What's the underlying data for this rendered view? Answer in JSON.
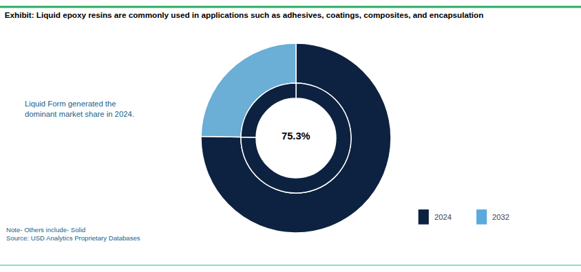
{
  "chart_data": {
    "type": "donut",
    "title": "Exhibit: Liquid epoxy resins are commonly used in applications such as adhesives, coatings, composites, and encapsulation",
    "title_color": "#000000",
    "annotation": "Liquid Form generated the\ndominant market share in 2024.",
    "annotation_color": "#1a5f8a",
    "note": "Note- Others include- Solid\nSource: USD Analytics Proprietary Databases",
    "note_color": "#1a5f8a",
    "center_text": "75.3%",
    "center_text_color": "#000000",
    "rings": [
      {
        "values": [
          75.3,
          24.7
        ],
        "colors": [
          "#0d2240",
          "#6baed6"
        ]
      },
      {
        "values": [
          75.3,
          24.7
        ],
        "colors": [
          "#0d2240",
          "#0d2240"
        ]
      }
    ],
    "legend_entries": [
      {
        "name": "2024",
        "color": "#0d2240"
      },
      {
        "name": "2032",
        "color": "#5aabdc"
      }
    ],
    "legend_text_color": "#444444",
    "top_line_color": "#27ae60",
    "bottom_line_color": "#1abc9c",
    "background_color": "#ffffff"
  }
}
